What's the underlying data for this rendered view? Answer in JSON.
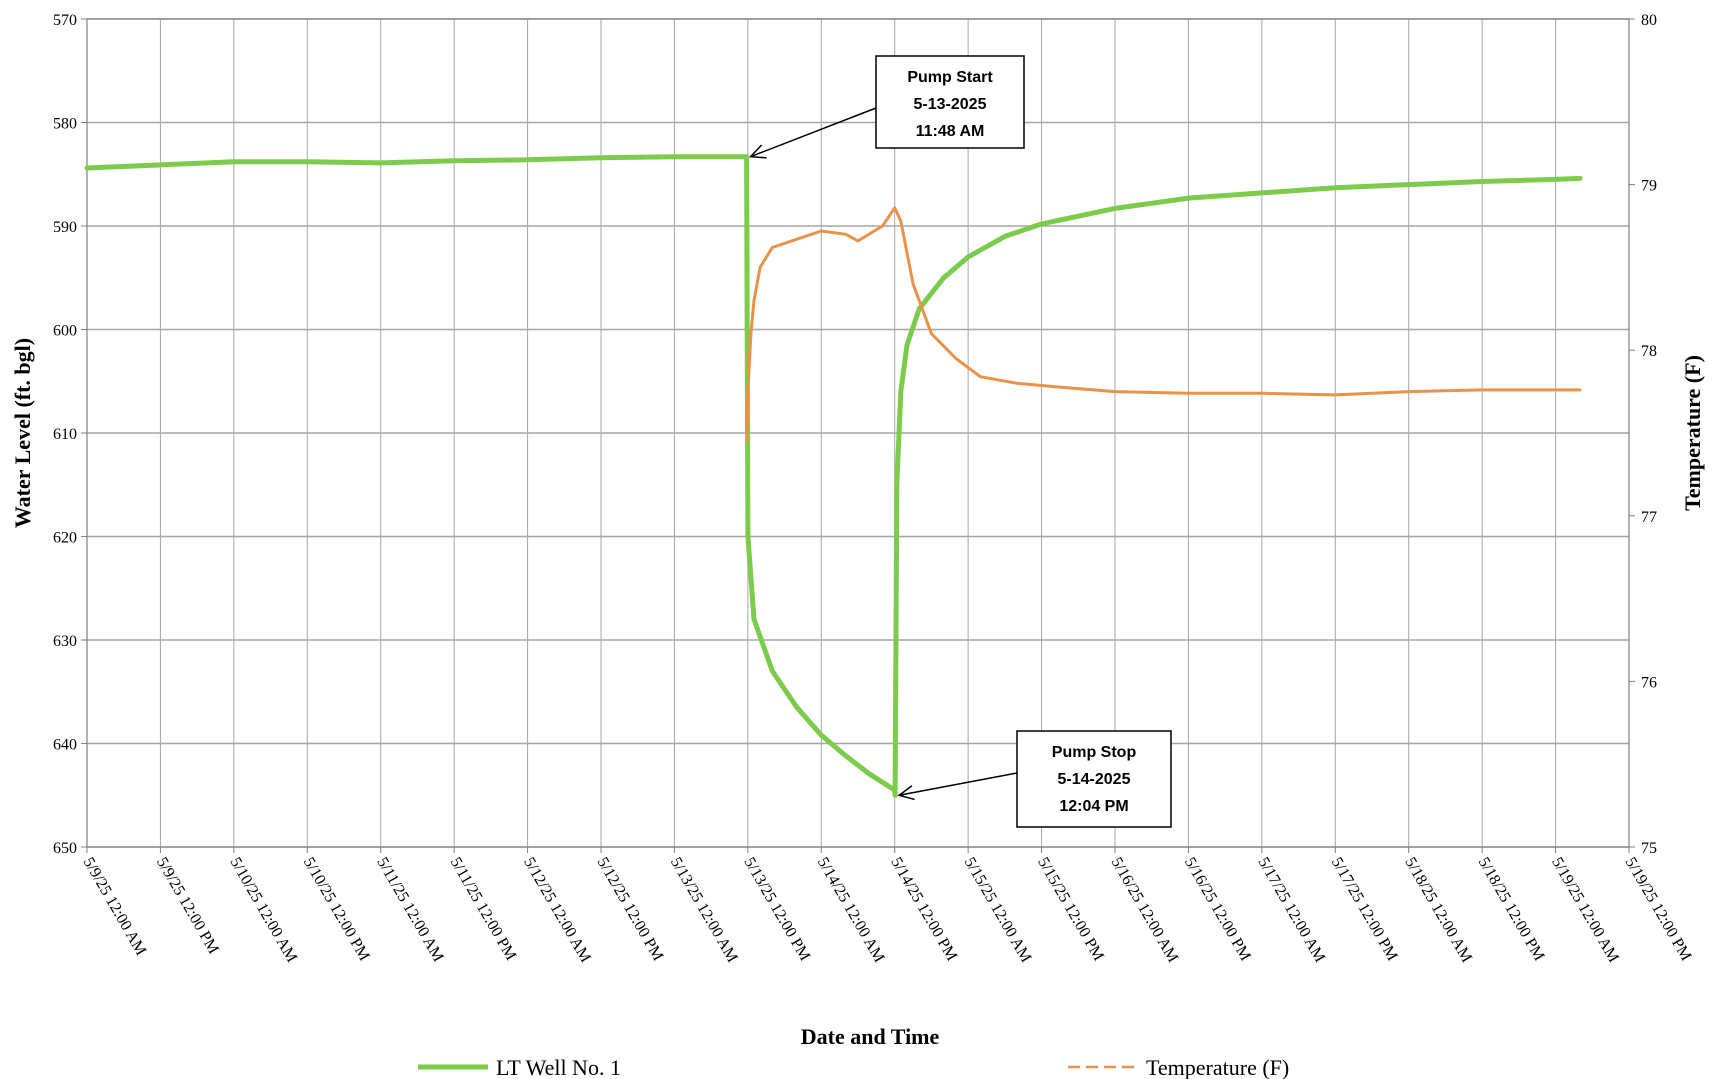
{
  "chart_data": {
    "type": "line",
    "xlabel": "Date and Time",
    "ylabel": "Water Level (ft. bgl)",
    "y2label": "Temperature (F)",
    "ylim": [
      650,
      570
    ],
    "y_inverted": true,
    "y_ticks": [
      570,
      580,
      590,
      600,
      610,
      620,
      630,
      640,
      650
    ],
    "y2lim": [
      75,
      80
    ],
    "y2_ticks": [
      75,
      76,
      77,
      78,
      79,
      80
    ],
    "grid": true,
    "legend_placement": "bottom",
    "x_start": "2025-05-09T00:00",
    "x_end": "2025-05-19T12:00",
    "x_ticks": [
      "2025-05-09T00:00",
      "2025-05-09T12:00",
      "2025-05-10T00:00",
      "2025-05-10T12:00",
      "2025-05-11T00:00",
      "2025-05-11T12:00",
      "2025-05-12T00:00",
      "2025-05-12T12:00",
      "2025-05-13T00:00",
      "2025-05-13T12:00",
      "2025-05-14T00:00",
      "2025-05-14T12:00",
      "2025-05-15T00:00",
      "2025-05-15T12:00",
      "2025-05-16T00:00",
      "2025-05-16T12:00",
      "2025-05-17T00:00",
      "2025-05-17T12:00",
      "2025-05-18T00:00",
      "2025-05-18T12:00",
      "2025-05-19T00:00",
      "2025-05-19T12:00"
    ],
    "x_tick_labels": [
      "5/9/25 12:00 AM",
      "5/9/25 12:00 PM",
      "5/10/25 12:00 AM",
      "5/10/25 12:00 PM",
      "5/11/25 12:00 AM",
      "5/11/25 12:00 PM",
      "5/12/25 12:00 AM",
      "5/12/25 12:00 PM",
      "5/13/25 12:00 AM",
      "5/13/25 12:00 PM",
      "5/14/25 12:00 AM",
      "5/14/25 12:00 PM",
      "5/15/25 12:00 AM",
      "5/15/25 12:00 PM",
      "5/16/25 12:00 AM",
      "5/16/25 12:00 PM",
      "5/17/25 12:00 AM",
      "5/17/25 12:00 PM",
      "5/18/25 12:00 AM",
      "5/18/25 12:00 PM",
      "5/19/25 12:00 AM",
      "5/19/25 12:00 PM"
    ],
    "series": [
      {
        "name": "LT Well No. 1",
        "axis": "left",
        "color": "#7DCB4C",
        "style": "solid",
        "points": [
          [
            "2025-05-09T00:00",
            584.4
          ],
          [
            "2025-05-09T12:00",
            584.1
          ],
          [
            "2025-05-10T00:00",
            583.8
          ],
          [
            "2025-05-10T12:00",
            583.8
          ],
          [
            "2025-05-11T00:00",
            583.9
          ],
          [
            "2025-05-11T12:00",
            583.7
          ],
          [
            "2025-05-12T00:00",
            583.6
          ],
          [
            "2025-05-12T12:00",
            583.4
          ],
          [
            "2025-05-13T00:00",
            583.3
          ],
          [
            "2025-05-13T11:48",
            583.3
          ],
          [
            "2025-05-13T12:00",
            620.0
          ],
          [
            "2025-05-13T13:00",
            628.0
          ],
          [
            "2025-05-13T16:00",
            633.0
          ],
          [
            "2025-05-13T20:00",
            636.5
          ],
          [
            "2025-05-14T00:00",
            639.2
          ],
          [
            "2025-05-14T04:00",
            641.2
          ],
          [
            "2025-05-14T08:00",
            643.0
          ],
          [
            "2025-05-14T12:00",
            644.5
          ],
          [
            "2025-05-14T12:04",
            645.0
          ],
          [
            "2025-05-14T12:20",
            615.0
          ],
          [
            "2025-05-14T13:00",
            606.0
          ],
          [
            "2025-05-14T14:00",
            601.5
          ],
          [
            "2025-05-14T16:00",
            598.0
          ],
          [
            "2025-05-14T20:00",
            595.0
          ],
          [
            "2025-05-15T00:00",
            593.0
          ],
          [
            "2025-05-15T06:00",
            591.0
          ],
          [
            "2025-05-15T12:00",
            589.8
          ],
          [
            "2025-05-16T00:00",
            588.3
          ],
          [
            "2025-05-16T12:00",
            587.3
          ],
          [
            "2025-05-17T00:00",
            586.8
          ],
          [
            "2025-05-17T12:00",
            586.3
          ],
          [
            "2025-05-18T00:00",
            586.0
          ],
          [
            "2025-05-18T12:00",
            585.7
          ],
          [
            "2025-05-19T00:00",
            585.5
          ],
          [
            "2025-05-19T04:00",
            585.4
          ]
        ]
      },
      {
        "name": "Temperature (F)",
        "axis": "right",
        "color": "#E8924A",
        "style": "dashed",
        "points": [
          [
            "2025-05-13T11:48",
            77.45
          ],
          [
            "2025-05-13T12:00",
            77.75
          ],
          [
            "2025-05-13T12:30",
            78.1
          ],
          [
            "2025-05-13T13:00",
            78.3
          ],
          [
            "2025-05-13T14:00",
            78.5
          ],
          [
            "2025-05-13T16:00",
            78.62
          ],
          [
            "2025-05-13T20:00",
            78.67
          ],
          [
            "2025-05-14T00:00",
            78.72
          ],
          [
            "2025-05-14T04:00",
            78.7
          ],
          [
            "2025-05-14T06:00",
            78.66
          ],
          [
            "2025-05-14T10:00",
            78.75
          ],
          [
            "2025-05-14T12:00",
            78.86
          ],
          [
            "2025-05-14T13:00",
            78.78
          ],
          [
            "2025-05-14T15:00",
            78.4
          ],
          [
            "2025-05-14T18:00",
            78.1
          ],
          [
            "2025-05-14T22:00",
            77.95
          ],
          [
            "2025-05-15T02:00",
            77.84
          ],
          [
            "2025-05-15T08:00",
            77.8
          ],
          [
            "2025-05-15T14:00",
            77.78
          ],
          [
            "2025-05-16T00:00",
            77.75
          ],
          [
            "2025-05-16T12:00",
            77.74
          ],
          [
            "2025-05-17T00:00",
            77.74
          ],
          [
            "2025-05-17T12:00",
            77.73
          ],
          [
            "2025-05-18T00:00",
            77.75
          ],
          [
            "2025-05-18T12:00",
            77.76
          ],
          [
            "2025-05-19T00:00",
            77.76
          ],
          [
            "2025-05-19T04:00",
            77.76
          ]
        ]
      }
    ],
    "annotations": [
      {
        "lines": [
          "Pump Start",
          "5-13-2025",
          "11:48 AM"
        ],
        "target": [
          "2025-05-13T11:48",
          583.3
        ]
      },
      {
        "lines": [
          "Pump Stop",
          "5-14-2025",
          "12:04 PM"
        ],
        "target": [
          "2025-05-14T12:04",
          645.0
        ]
      }
    ],
    "colors": {
      "grid": "#a6a6a6",
      "axis": "#808080"
    }
  }
}
